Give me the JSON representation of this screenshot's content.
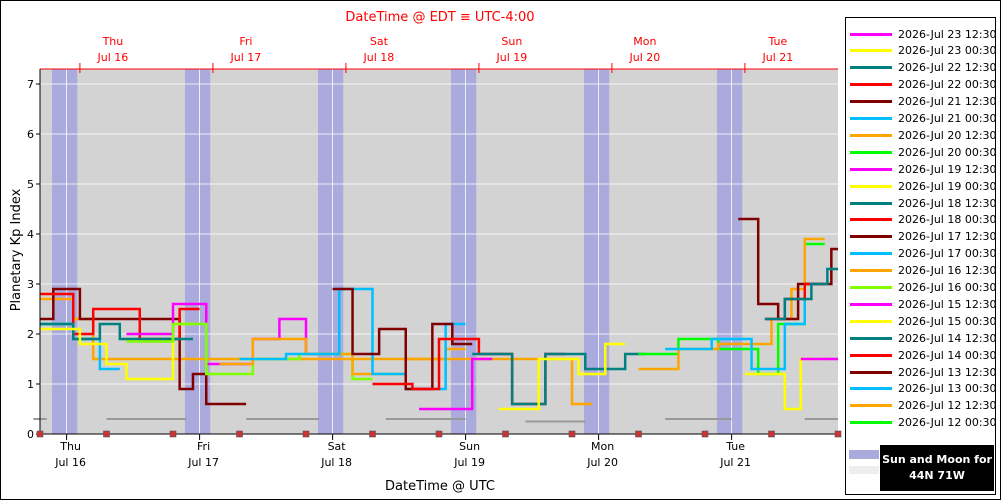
{
  "titles": {
    "top": "DateTime @ EDT ≡ UTC-4:00",
    "bottom": "DateTime @ UTC",
    "ylabel": "Planetary Kp Index"
  },
  "legend_note": {
    "line1": "Sun and Moon for",
    "line2": "44N 71W"
  },
  "chart_data": {
    "type": "line",
    "step": true,
    "xlim": [
      0,
      6
    ],
    "ylim": [
      0,
      7.3
    ],
    "yticks": [
      0,
      1,
      2,
      3,
      4,
      5,
      6,
      7
    ],
    "grid": true,
    "legend_position": "right",
    "top_axis_ticks": [
      {
        "x": 0.3,
        "day": "Thu",
        "date": "Jul 16"
      },
      {
        "x": 1.3,
        "day": "Fri",
        "date": "Jul 17"
      },
      {
        "x": 2.3,
        "day": "Sat",
        "date": "Jul 18"
      },
      {
        "x": 3.3,
        "day": "Sun",
        "date": "Jul 19"
      },
      {
        "x": 4.3,
        "day": "Mon",
        "date": "Jul 20"
      },
      {
        "x": 5.3,
        "day": "Tue",
        "date": "Jul 21"
      }
    ],
    "bottom_axis_ticks": [
      {
        "x": 0.2,
        "day": "Thu",
        "date": "Jul 16"
      },
      {
        "x": 1.2,
        "day": "Fri",
        "date": "Jul 17"
      },
      {
        "x": 2.2,
        "day": "Sat",
        "date": "Jul 18"
      },
      {
        "x": 3.2,
        "day": "Sun",
        "date": "Jul 19"
      },
      {
        "x": 4.2,
        "day": "Mon",
        "date": "Jul 20"
      },
      {
        "x": 5.2,
        "day": "Tue",
        "date": "Jul 21"
      }
    ],
    "night_bands": [
      [
        0.09,
        0.28
      ],
      [
        1.09,
        1.28
      ],
      [
        2.09,
        2.28
      ],
      [
        3.09,
        3.28
      ],
      [
        4.09,
        4.28
      ],
      [
        5.09,
        5.28
      ]
    ],
    "moon_bars": [
      [
        -0.05,
        0.05,
        0.3
      ],
      [
        0.5,
        1.1,
        0.3
      ],
      [
        1.55,
        2.1,
        0.3
      ],
      [
        2.6,
        3.2,
        0.3
      ],
      [
        3.65,
        4.1,
        0.25
      ],
      [
        4.7,
        5.2,
        0.3
      ],
      [
        5.75,
        6.0,
        0.3
      ]
    ],
    "series": [
      {
        "name": "2026-Jul 23 12:30",
        "color": "#ff00ff",
        "values": [
          [
            5.72,
            1.5
          ],
          [
            6.0,
            1.5
          ]
        ]
      },
      {
        "name": "2026-Jul 23 00:30",
        "color": "#ffff00",
        "values": [
          [
            5.3,
            1.2
          ],
          [
            5.6,
            0.5
          ],
          [
            5.72,
            1.5
          ]
        ]
      },
      {
        "name": "2026-Jul 22 12:30",
        "color": "#008080",
        "values": [
          [
            5.45,
            2.3
          ],
          [
            5.6,
            2.7
          ],
          [
            5.8,
            3.0
          ],
          [
            5.92,
            3.3
          ]
        ]
      },
      {
        "name": "2026-Jul 22 00:30",
        "color": "#ff0000",
        "values": [
          [
            5.45,
            2.3
          ],
          [
            5.6,
            2.7
          ],
          [
            5.75,
            3.0
          ]
        ]
      },
      {
        "name": "2026-Jul 21 12:30",
        "color": "#800000",
        "values": [
          [
            5.25,
            4.3
          ],
          [
            5.4,
            2.6
          ],
          [
            5.55,
            2.3
          ],
          [
            5.7,
            3.0
          ],
          [
            5.95,
            3.7
          ]
        ]
      },
      {
        "name": "2026-Jul 21 00:30",
        "color": "#00bfff",
        "values": [
          [
            4.7,
            1.7
          ],
          [
            5.05,
            1.9
          ],
          [
            5.35,
            1.3
          ],
          [
            5.6,
            2.2
          ],
          [
            5.75,
            3.0
          ]
        ]
      },
      {
        "name": "2026-Jul 20 12:30",
        "color": "#ffa500",
        "values": [
          [
            4.5,
            1.3
          ],
          [
            4.8,
            1.7
          ],
          [
            5.1,
            1.8
          ],
          [
            5.5,
            2.3
          ],
          [
            5.65,
            2.9
          ],
          [
            5.75,
            3.9
          ]
        ]
      },
      {
        "name": "2026-Jul 20 00:30",
        "color": "#00ff00",
        "values": [
          [
            4.5,
            1.6
          ],
          [
            4.8,
            1.9
          ],
          [
            5.1,
            1.7
          ],
          [
            5.4,
            1.2
          ],
          [
            5.55,
            2.2
          ],
          [
            5.75,
            3.8
          ]
        ]
      },
      {
        "name": "2026-Jul 19 12:30",
        "color": "#ff00ff",
        "values": [
          [
            2.85,
            0.5
          ],
          [
            3.1,
            0.5
          ],
          [
            3.25,
            1.5
          ]
        ]
      },
      {
        "name": "2026-Jul 19 00:30",
        "color": "#ffff00",
        "values": [
          [
            3.45,
            0.5
          ],
          [
            3.75,
            1.5
          ],
          [
            4.05,
            1.2
          ],
          [
            4.25,
            1.8
          ]
        ]
      },
      {
        "name": "2026-Jul 18 12:30",
        "color": "#008080",
        "values": [
          [
            3.25,
            1.6
          ],
          [
            3.55,
            0.6
          ],
          [
            3.8,
            1.6
          ],
          [
            4.1,
            1.3
          ],
          [
            4.4,
            1.6
          ]
        ]
      },
      {
        "name": "2026-Jul 18 00:30",
        "color": "#ff0000",
        "values": [
          [
            2.5,
            1.0
          ],
          [
            2.8,
            0.9
          ],
          [
            3.0,
            1.9
          ],
          [
            3.3,
            1.6
          ],
          [
            3.55,
            0.6
          ],
          [
            3.8,
            1.6
          ]
        ]
      },
      {
        "name": "2026-Jul 17 12:30",
        "color": "#800000",
        "values": [
          [
            2.2,
            2.9
          ],
          [
            2.35,
            1.6
          ],
          [
            2.55,
            2.1
          ],
          [
            2.75,
            0.9
          ],
          [
            2.95,
            2.2
          ],
          [
            3.1,
            1.8
          ]
        ]
      },
      {
        "name": "2026-Jul 17 00:30",
        "color": "#00bfff",
        "values": [
          [
            1.5,
            1.5
          ],
          [
            1.85,
            1.6
          ],
          [
            2.25,
            2.9
          ],
          [
            2.5,
            1.2
          ],
          [
            2.75,
            0.9
          ],
          [
            3.05,
            2.2
          ]
        ]
      },
      {
        "name": "2026-Jul 16 12:30",
        "color": "#ffa500",
        "values": [
          [
            1.35,
            1.4
          ],
          [
            1.6,
            1.9
          ],
          [
            2.0,
            1.6
          ],
          [
            2.35,
            1.2
          ],
          [
            2.75,
            1.5
          ],
          [
            3.05,
            1.7
          ]
        ]
      },
      {
        "name": "2026-Jul 16 00:30",
        "color": "#7fff00",
        "values": [
          [
            0.65,
            1.85
          ],
          [
            1.0,
            2.2
          ],
          [
            1.25,
            1.2
          ],
          [
            1.6,
            1.5
          ],
          [
            1.95,
            1.6
          ],
          [
            2.35,
            1.1
          ]
        ]
      },
      {
        "name": "2026-Jul 15 12:30",
        "color": "#ff00ff",
        "values": [
          [
            0.65,
            2.0
          ],
          [
            1.0,
            2.6
          ],
          [
            1.25,
            1.4
          ],
          [
            1.6,
            1.9
          ],
          [
            1.8,
            2.3
          ],
          [
            2.0,
            1.6
          ]
        ]
      },
      {
        "name": "2026-Jul 15 00:30",
        "color": "#ffff00",
        "values": [
          [
            0.0,
            2.1
          ],
          [
            0.3,
            1.8
          ],
          [
            0.5,
            1.4
          ],
          [
            0.65,
            1.1
          ],
          [
            1.0,
            2.2
          ]
        ]
      },
      {
        "name": "2026-Jul 14 12:30",
        "color": "#008080",
        "values": [
          [
            0.0,
            2.2
          ],
          [
            0.25,
            1.9
          ],
          [
            0.45,
            2.2
          ],
          [
            0.6,
            1.9
          ],
          [
            1.0,
            1.9
          ]
        ]
      },
      {
        "name": "2026-Jul 14 00:30",
        "color": "#ff0000",
        "values": [
          [
            0.0,
            2.8
          ],
          [
            0.25,
            2.0
          ],
          [
            0.4,
            2.5
          ],
          [
            0.75,
            1.9
          ],
          [
            1.05,
            2.5
          ]
        ]
      },
      {
        "name": "2026-Jul 13 12:30",
        "color": "#800000",
        "values": [
          [
            0.0,
            2.3
          ],
          [
            0.1,
            2.9
          ],
          [
            0.3,
            2.3
          ],
          [
            1.05,
            0.9
          ],
          [
            1.15,
            1.2
          ],
          [
            1.25,
            0.6
          ],
          [
            1.4,
            0.6
          ]
        ]
      },
      {
        "name": "2026-Jul 13 00:30",
        "color": "#00bfff",
        "values": [
          [
            0.0,
            2.2
          ],
          [
            0.25,
            1.9
          ],
          [
            0.45,
            1.3
          ]
        ]
      },
      {
        "name": "2026-Jul 12 12:30",
        "color": "#ffa500",
        "values": [
          [
            0.0,
            2.7
          ],
          [
            0.25,
            2.3
          ],
          [
            0.4,
            1.5
          ],
          [
            4.0,
            0.6
          ]
        ]
      },
      {
        "name": "2026-Jul 12 00:30",
        "color": "#00ff00",
        "values": [
          [
            0.0,
            2.2
          ],
          [
            0.25,
            1.9
          ]
        ]
      }
    ]
  }
}
